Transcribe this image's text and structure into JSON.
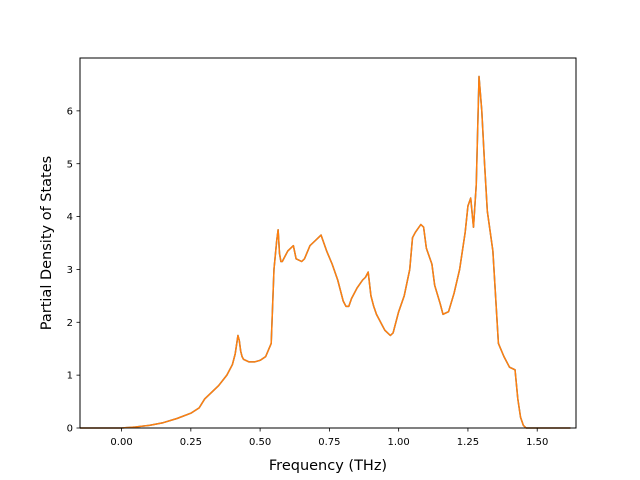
{
  "chart_data": {
    "type": "line",
    "title": "",
    "xlabel": "Frequency (THz)",
    "ylabel": "Partial Density of States",
    "xlim": [
      -0.15,
      1.64
    ],
    "ylim": [
      0,
      7.0
    ],
    "xticks": [
      0.0,
      0.25,
      0.5,
      0.75,
      1.0,
      1.25,
      1.5
    ],
    "xtick_labels": [
      "0.00",
      "0.25",
      "0.50",
      "0.75",
      "1.00",
      "1.25",
      "1.50"
    ],
    "yticks": [
      0,
      1,
      2,
      3,
      4,
      5,
      6
    ],
    "ytick_labels": [
      "0",
      "1",
      "2",
      "3",
      "4",
      "5",
      "6"
    ],
    "grid": false,
    "legend": "none",
    "series": [
      {
        "color": "#1f77b4",
        "x": [
          -0.15,
          0.0,
          0.05,
          0.1,
          0.15,
          0.2,
          0.25,
          0.28,
          0.3,
          0.35,
          0.38,
          0.4,
          0.41,
          0.42,
          0.425,
          0.43,
          0.435,
          0.44,
          0.46,
          0.48,
          0.5,
          0.52,
          0.54,
          0.55,
          0.56,
          0.565,
          0.57,
          0.575,
          0.58,
          0.6,
          0.62,
          0.63,
          0.65,
          0.66,
          0.68,
          0.7,
          0.72,
          0.74,
          0.76,
          0.78,
          0.8,
          0.81,
          0.82,
          0.83,
          0.85,
          0.87,
          0.88,
          0.89,
          0.9,
          0.91,
          0.92,
          0.95,
          0.97,
          0.98,
          1.0,
          1.02,
          1.04,
          1.05,
          1.06,
          1.08,
          1.09,
          1.1,
          1.12,
          1.13,
          1.15,
          1.16,
          1.18,
          1.2,
          1.22,
          1.24,
          1.25,
          1.26,
          1.27,
          1.28,
          1.29,
          1.3,
          1.31,
          1.32,
          1.34,
          1.36,
          1.38,
          1.4,
          1.42,
          1.43,
          1.44,
          1.45,
          1.46,
          1.48,
          1.5,
          1.62
        ],
        "y": [
          0.0,
          0.0,
          0.02,
          0.05,
          0.1,
          0.18,
          0.28,
          0.38,
          0.55,
          0.8,
          1.0,
          1.2,
          1.4,
          1.75,
          1.65,
          1.45,
          1.35,
          1.3,
          1.25,
          1.25,
          1.28,
          1.35,
          1.6,
          3.0,
          3.55,
          3.75,
          3.3,
          3.15,
          3.15,
          3.35,
          3.45,
          3.2,
          3.15,
          3.2,
          3.45,
          3.55,
          3.65,
          3.35,
          3.1,
          2.8,
          2.4,
          2.3,
          2.3,
          2.45,
          2.65,
          2.8,
          2.85,
          2.95,
          2.5,
          2.3,
          2.15,
          1.85,
          1.75,
          1.8,
          2.2,
          2.5,
          3.0,
          3.6,
          3.7,
          3.85,
          3.8,
          3.4,
          3.1,
          2.7,
          2.35,
          2.15,
          2.2,
          2.55,
          3.0,
          3.7,
          4.2,
          4.35,
          3.8,
          4.6,
          6.65,
          6.0,
          5.0,
          4.1,
          3.35,
          1.6,
          1.35,
          1.15,
          1.1,
          0.55,
          0.2,
          0.05,
          0.0,
          0.0,
          0.0,
          0.0
        ]
      },
      {
        "color": "#ff7f0e",
        "x": [
          -0.15,
          0.0,
          0.05,
          0.1,
          0.15,
          0.2,
          0.25,
          0.28,
          0.3,
          0.35,
          0.38,
          0.4,
          0.41,
          0.42,
          0.425,
          0.43,
          0.435,
          0.44,
          0.46,
          0.48,
          0.5,
          0.52,
          0.54,
          0.55,
          0.56,
          0.565,
          0.57,
          0.575,
          0.58,
          0.6,
          0.62,
          0.63,
          0.65,
          0.66,
          0.68,
          0.7,
          0.72,
          0.74,
          0.76,
          0.78,
          0.8,
          0.81,
          0.82,
          0.83,
          0.85,
          0.87,
          0.88,
          0.89,
          0.9,
          0.91,
          0.92,
          0.95,
          0.97,
          0.98,
          1.0,
          1.02,
          1.04,
          1.05,
          1.06,
          1.08,
          1.09,
          1.1,
          1.12,
          1.13,
          1.15,
          1.16,
          1.18,
          1.2,
          1.22,
          1.24,
          1.25,
          1.26,
          1.27,
          1.28,
          1.29,
          1.3,
          1.31,
          1.32,
          1.34,
          1.36,
          1.38,
          1.4,
          1.42,
          1.43,
          1.44,
          1.45,
          1.46,
          1.48,
          1.5,
          1.62
        ],
        "y": [
          0.0,
          0.0,
          0.02,
          0.05,
          0.1,
          0.18,
          0.28,
          0.38,
          0.55,
          0.8,
          1.0,
          1.2,
          1.4,
          1.75,
          1.65,
          1.45,
          1.35,
          1.3,
          1.25,
          1.25,
          1.28,
          1.35,
          1.6,
          3.0,
          3.55,
          3.75,
          3.3,
          3.15,
          3.15,
          3.35,
          3.45,
          3.2,
          3.15,
          3.2,
          3.45,
          3.55,
          3.65,
          3.35,
          3.1,
          2.8,
          2.4,
          2.3,
          2.3,
          2.45,
          2.65,
          2.8,
          2.85,
          2.95,
          2.5,
          2.3,
          2.15,
          1.85,
          1.75,
          1.8,
          2.2,
          2.5,
          3.0,
          3.6,
          3.7,
          3.85,
          3.8,
          3.4,
          3.1,
          2.7,
          2.35,
          2.15,
          2.2,
          2.55,
          3.0,
          3.7,
          4.2,
          4.35,
          3.8,
          4.6,
          6.65,
          6.0,
          5.0,
          4.1,
          3.35,
          1.6,
          1.35,
          1.15,
          1.1,
          0.55,
          0.2,
          0.05,
          0.0,
          0.0,
          0.0,
          0.0
        ]
      }
    ]
  }
}
